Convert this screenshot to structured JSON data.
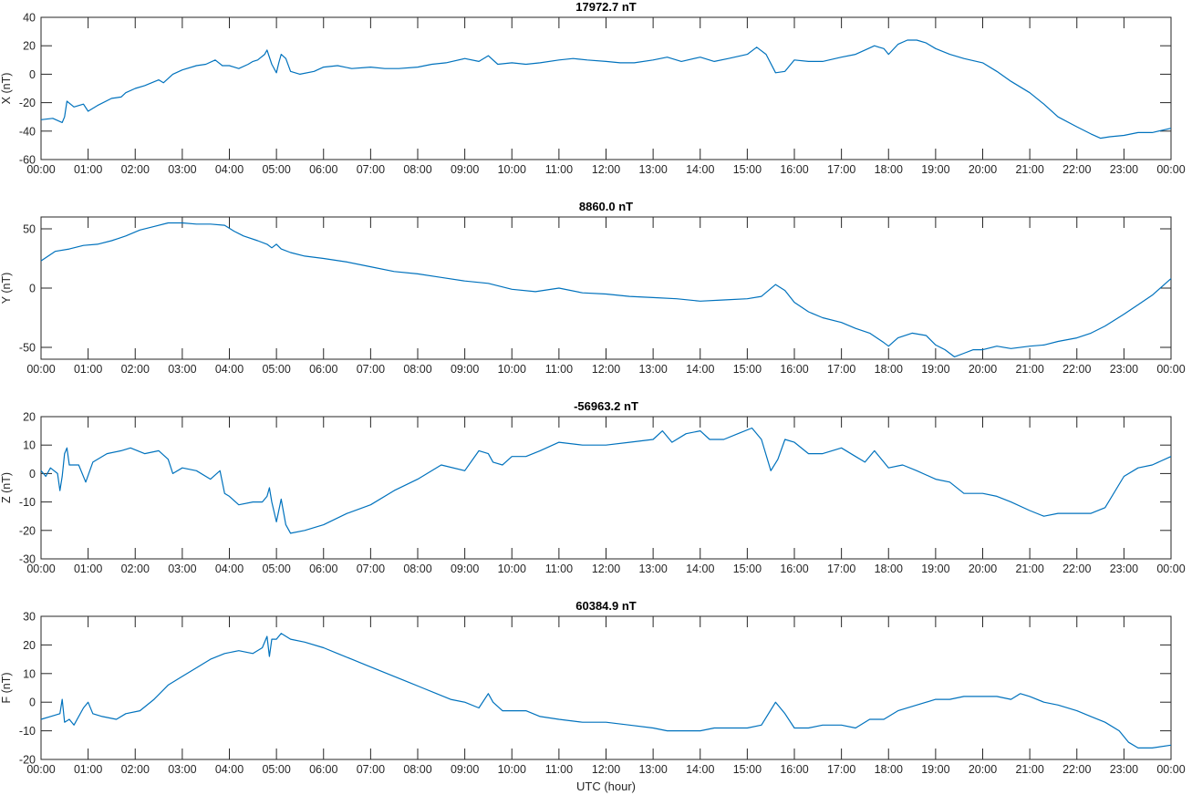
{
  "figure": {
    "xlabel": "UTC (hour)",
    "x_ticks": [
      "00:00",
      "01:00",
      "02:00",
      "03:00",
      "04:00",
      "05:00",
      "06:00",
      "07:00",
      "08:00",
      "09:00",
      "10:00",
      "11:00",
      "12:00",
      "13:00",
      "14:00",
      "15:00",
      "16:00",
      "17:00",
      "18:00",
      "19:00",
      "20:00",
      "21:00",
      "22:00",
      "23:00",
      "00:00"
    ],
    "line_color": "#0072BD"
  },
  "chart_data": [
    {
      "type": "line",
      "title": "17972.7 nT",
      "ylabel": "X (nT)",
      "xlabel": "",
      "xlim": [
        0,
        24
      ],
      "ylim": [
        -60,
        40
      ],
      "yticks": [
        -60,
        -40,
        -20,
        0,
        20,
        40
      ],
      "grid": false,
      "series": [
        {
          "x": [
            0,
            0.25,
            0.45,
            0.5,
            0.55,
            0.7,
            0.9,
            1.0,
            1.2,
            1.5,
            1.7,
            1.8,
            2.0,
            2.2,
            2.5,
            2.6,
            2.8,
            3.0,
            3.3,
            3.5,
            3.7,
            3.85,
            4.0,
            4.2,
            4.4,
            4.5,
            4.6,
            4.75,
            4.8,
            4.9,
            5.0,
            5.05,
            5.1,
            5.2,
            5.3,
            5.5,
            5.8,
            6.0,
            6.3,
            6.6,
            7.0,
            7.3,
            7.6,
            8.0,
            8.3,
            8.6,
            9.0,
            9.3,
            9.5,
            9.7,
            10.0,
            10.3,
            10.6,
            11.0,
            11.3,
            11.6,
            12.0,
            12.3,
            12.6,
            13.0,
            13.3,
            13.6,
            14.0,
            14.3,
            14.6,
            15.0,
            15.2,
            15.4,
            15.6,
            15.8,
            16.0,
            16.3,
            16.6,
            17.0,
            17.3,
            17.5,
            17.7,
            17.8,
            17.9,
            18.0,
            18.2,
            18.4,
            18.6,
            18.8,
            19.0,
            19.3,
            19.6,
            20.0,
            20.3,
            20.6,
            21.0,
            21.3,
            21.6,
            22.0,
            22.3,
            22.5,
            22.7,
            23.0,
            23.3,
            23.6,
            24.0
          ],
          "y": [
            -32,
            -31,
            -34,
            -30,
            -19,
            -23,
            -21,
            -26,
            -22,
            -17,
            -16,
            -13,
            -10,
            -8,
            -4,
            -6,
            0,
            3,
            6,
            7,
            10,
            6,
            6,
            4,
            7,
            9,
            10,
            14,
            17,
            7,
            1,
            8,
            14,
            11,
            2,
            0,
            2,
            5,
            6,
            4,
            5,
            4,
            4,
            5,
            7,
            8,
            11,
            9,
            13,
            7,
            8,
            7,
            8,
            10,
            11,
            10,
            9,
            8,
            8,
            10,
            12,
            9,
            12,
            9,
            11,
            14,
            19,
            14,
            1,
            2,
            10,
            9,
            9,
            12,
            14,
            17,
            20,
            19,
            18,
            14,
            21,
            24,
            24,
            22,
            18,
            14,
            11,
            8,
            2,
            -5,
            -13,
            -21,
            -30,
            -37,
            -42,
            -45,
            -44,
            -43,
            -41,
            -41,
            -38
          ]
        }
      ]
    },
    {
      "type": "line",
      "title": "8860.0 nT",
      "ylabel": "Y (nT)",
      "xlabel": "",
      "xlim": [
        0,
        24
      ],
      "ylim": [
        -60,
        60
      ],
      "yticks": [
        -50,
        0,
        50
      ],
      "grid": false,
      "series": [
        {
          "x": [
            0,
            0.3,
            0.6,
            0.9,
            1.2,
            1.5,
            1.8,
            2.1,
            2.4,
            2.7,
            3.0,
            3.3,
            3.6,
            3.9,
            4.1,
            4.3,
            4.6,
            4.8,
            4.9,
            5.0,
            5.1,
            5.3,
            5.6,
            6.0,
            6.5,
            7.0,
            7.5,
            8.0,
            8.5,
            9.0,
            9.5,
            10.0,
            10.5,
            11.0,
            11.5,
            12.0,
            12.5,
            13.0,
            13.5,
            14.0,
            14.5,
            15.0,
            15.3,
            15.6,
            15.8,
            16.0,
            16.3,
            16.6,
            17.0,
            17.3,
            17.6,
            17.9,
            18.0,
            18.2,
            18.5,
            18.8,
            19.0,
            19.2,
            19.4,
            19.6,
            19.8,
            20.0,
            20.3,
            20.6,
            21.0,
            21.3,
            21.6,
            22.0,
            22.3,
            22.6,
            23.0,
            23.3,
            23.6,
            24.0
          ],
          "y": [
            23,
            31,
            33,
            36,
            37,
            40,
            44,
            49,
            52,
            55,
            55,
            54,
            54,
            53,
            48,
            44,
            40,
            37,
            34,
            37,
            33,
            30,
            27,
            25,
            22,
            18,
            14,
            12,
            9,
            6,
            4,
            -1,
            -3,
            0,
            -4,
            -5,
            -7,
            -8,
            -9,
            -11,
            -10,
            -9,
            -7,
            3,
            -2,
            -12,
            -20,
            -25,
            -29,
            -34,
            -38,
            -46,
            -49,
            -42,
            -38,
            -40,
            -48,
            -52,
            -58,
            -55,
            -52,
            -52,
            -49,
            -51,
            -49,
            -48,
            -45,
            -42,
            -38,
            -32,
            -22,
            -14,
            -6,
            8
          ]
        }
      ]
    },
    {
      "type": "line",
      "title": "-56963.2 nT",
      "ylabel": "Z (nT)",
      "xlabel": "",
      "xlim": [
        0,
        24
      ],
      "ylim": [
        -30,
        20
      ],
      "yticks": [
        -30,
        -20,
        -10,
        0,
        10,
        20
      ],
      "grid": false,
      "series": [
        {
          "x": [
            0,
            0.1,
            0.2,
            0.35,
            0.4,
            0.45,
            0.5,
            0.55,
            0.6,
            0.8,
            0.95,
            1.1,
            1.4,
            1.7,
            1.9,
            2.2,
            2.5,
            2.7,
            2.8,
            3.0,
            3.3,
            3.6,
            3.8,
            3.9,
            4.0,
            4.2,
            4.5,
            4.7,
            4.8,
            4.85,
            4.9,
            5.0,
            5.1,
            5.2,
            5.3,
            5.6,
            6.0,
            6.5,
            7.0,
            7.5,
            8.0,
            8.5,
            9.0,
            9.3,
            9.5,
            9.6,
            9.8,
            10.0,
            10.3,
            10.6,
            11.0,
            11.5,
            12.0,
            12.5,
            13.0,
            13.2,
            13.4,
            13.7,
            14.0,
            14.2,
            14.5,
            14.8,
            15.1,
            15.3,
            15.5,
            15.65,
            15.8,
            16.0,
            16.3,
            16.6,
            17.0,
            17.3,
            17.5,
            17.7,
            17.9,
            18.0,
            18.3,
            18.6,
            19.0,
            19.3,
            19.6,
            20.0,
            20.3,
            20.6,
            21.0,
            21.3,
            21.6,
            22.0,
            22.3,
            22.6,
            23.0,
            23.3,
            23.6,
            24.0
          ],
          "y": [
            1,
            -1,
            2,
            0,
            -6,
            -1,
            7,
            9,
            3,
            3,
            -3,
            4,
            7,
            8,
            9,
            7,
            8,
            5,
            0,
            2,
            1,
            -2,
            1,
            -7,
            -8,
            -11,
            -10,
            -10,
            -8,
            -5,
            -10,
            -17,
            -9,
            -18,
            -21,
            -20,
            -18,
            -14,
            -11,
            -6,
            -2,
            3,
            1,
            8,
            7,
            4,
            3,
            6,
            6,
            8,
            11,
            10,
            10,
            11,
            12,
            15,
            11,
            14,
            15,
            12,
            12,
            14,
            16,
            12,
            1,
            5,
            12,
            11,
            7,
            7,
            9,
            6,
            4,
            8,
            4,
            2,
            3,
            1,
            -2,
            -3,
            -7,
            -7,
            -8,
            -10,
            -13,
            -15,
            -14,
            -14,
            -14,
            -12,
            -1,
            2,
            3,
            6
          ]
        }
      ]
    },
    {
      "type": "line",
      "title": "60384.9 nT",
      "ylabel": "F (nT)",
      "xlabel": "",
      "xlim": [
        0,
        24
      ],
      "ylim": [
        -20,
        30
      ],
      "yticks": [
        -20,
        -10,
        0,
        10,
        20,
        30
      ],
      "grid": false,
      "series": [
        {
          "x": [
            0,
            0.2,
            0.4,
            0.45,
            0.5,
            0.6,
            0.7,
            0.9,
            1.0,
            1.1,
            1.3,
            1.6,
            1.8,
            2.1,
            2.4,
            2.7,
            3.0,
            3.3,
            3.6,
            3.9,
            4.2,
            4.5,
            4.7,
            4.8,
            4.85,
            4.9,
            5.0,
            5.1,
            5.3,
            5.6,
            6.0,
            6.3,
            6.6,
            6.9,
            7.2,
            7.5,
            7.8,
            8.1,
            8.4,
            8.7,
            9.0,
            9.3,
            9.5,
            9.6,
            9.8,
            10.0,
            10.3,
            10.6,
            11.0,
            11.5,
            12.0,
            12.5,
            13.0,
            13.3,
            13.6,
            14.0,
            14.3,
            14.6,
            15.0,
            15.3,
            15.6,
            15.8,
            16.0,
            16.3,
            16.6,
            17.0,
            17.3,
            17.6,
            17.9,
            18.2,
            18.6,
            19.0,
            19.3,
            19.6,
            20.0,
            20.3,
            20.6,
            20.8,
            21.0,
            21.3,
            21.6,
            22.0,
            22.3,
            22.6,
            22.9,
            23.1,
            23.3,
            23.6,
            24.0
          ],
          "y": [
            -6,
            -5,
            -4,
            1,
            -7,
            -6,
            -8,
            -2,
            0,
            -4,
            -5,
            -6,
            -4,
            -3,
            1,
            6,
            9,
            12,
            15,
            17,
            18,
            17,
            19,
            23,
            16,
            22,
            22,
            24,
            22,
            21,
            19,
            17,
            15,
            13,
            11,
            9,
            7,
            5,
            3,
            1,
            0,
            -2,
            3,
            0,
            -3,
            -3,
            -3,
            -5,
            -6,
            -7,
            -7,
            -8,
            -9,
            -10,
            -10,
            -10,
            -9,
            -9,
            -9,
            -8,
            0,
            -4,
            -9,
            -9,
            -8,
            -8,
            -9,
            -6,
            -6,
            -3,
            -1,
            1,
            1,
            2,
            2,
            2,
            1,
            3,
            2,
            0,
            -1,
            -3,
            -5,
            -7,
            -10,
            -14,
            -16,
            -16,
            -15
          ]
        }
      ]
    }
  ]
}
